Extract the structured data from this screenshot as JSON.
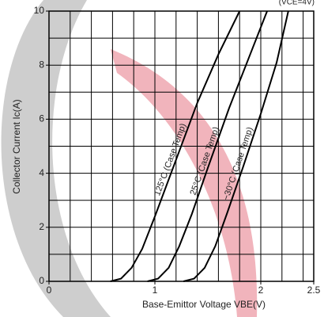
{
  "chart_data": {
    "type": "line",
    "note": "(VCE=4V)",
    "x_label": "Base-Emittor Voltage VBE(V)",
    "y_label": "Collector Current Ic(A)",
    "xlim": [
      0,
      2.5
    ],
    "ylim": [
      0,
      10
    ],
    "xticks": [
      0,
      1,
      2,
      2.5
    ],
    "xgrid": [
      0,
      0.2,
      0.4,
      0.6,
      0.8,
      1,
      1.2,
      1.4,
      1.6,
      1.8,
      2,
      2.2,
      2.4
    ],
    "yticks": [
      0,
      2,
      4,
      6,
      8,
      10
    ],
    "ygrid": [
      0,
      1,
      2,
      3,
      4,
      5,
      6,
      7,
      8,
      9,
      10
    ],
    "grid": true,
    "series": [
      {
        "name": "125°C (Case Temp)",
        "color": "#000000",
        "x": [
          0.58,
          0.68,
          0.78,
          0.88,
          1.0,
          1.2,
          1.4,
          1.6,
          1.8
        ],
        "values": [
          0,
          0.1,
          0.5,
          1.2,
          2.4,
          4.5,
          6.6,
          8.4,
          10
        ]
      },
      {
        "name": "25°C (Case Temp)",
        "color": "#000000",
        "x": [
          0.93,
          1.03,
          1.13,
          1.23,
          1.35,
          1.5,
          1.7,
          1.9,
          2.06
        ],
        "values": [
          0,
          0.1,
          0.5,
          1.3,
          2.5,
          4.2,
          6.4,
          8.4,
          10
        ]
      },
      {
        "name": "−30°C (Case Temp)",
        "color": "#000000",
        "x": [
          1.27,
          1.37,
          1.47,
          1.57,
          1.68,
          1.83,
          2.0,
          2.15,
          2.26
        ],
        "values": [
          0,
          0.1,
          0.5,
          1.3,
          2.5,
          4.2,
          6.2,
          8.1,
          10
        ]
      }
    ]
  }
}
